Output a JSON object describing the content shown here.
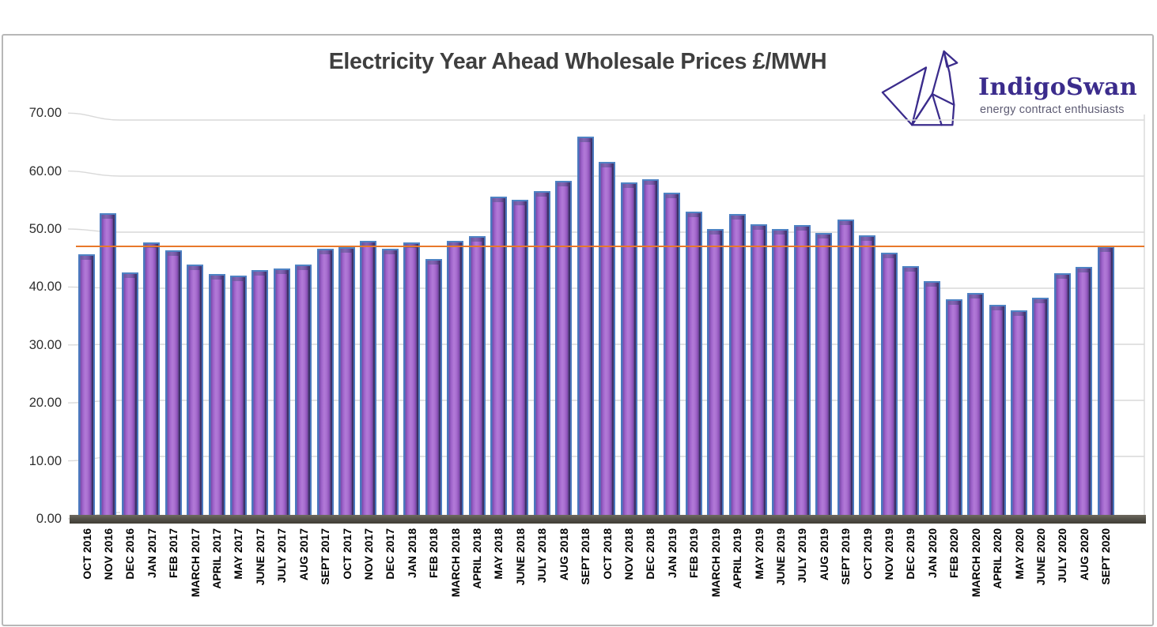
{
  "header": {
    "title": "Electricity Year Ahead Wholesale Prices £/MWH"
  },
  "logo": {
    "name": "IndigoSwan",
    "tagline": "energy contract enthusiasts",
    "brand_color": "#3B2C8C",
    "tagline_color": "#5E5C74"
  },
  "chart_data": {
    "type": "bar",
    "title": "Electricity Year Ahead Wholesale Prices £/MWH",
    "categories": [
      "OCT 2016",
      "NOV 2016",
      "DEC 2016",
      "JAN 2017",
      "FEB 2017",
      "MARCH 2017",
      "APRIL 2017",
      "MAY 2017",
      "JUNE 2017",
      "JULY 2017",
      "AUG 2017",
      "SEPT 2017",
      "OCT 2017",
      "NOV 2017",
      "DEC 2017",
      "JAN 2018",
      "FEB 2018",
      "MARCH 2018",
      "APRIL 2018",
      "MAY 2018",
      "JUNE 2018",
      "JULY 2018",
      "AUG 2018",
      "SEPT 2018",
      "OCT 2018",
      "NOV 2018",
      "DEC 2018",
      "JAN 2019",
      "FEB 2019",
      "MARCH 2019",
      "APRIL 2019",
      "MAY 2019",
      "JUNE 2019",
      "JULY 2019",
      "AUG 2019",
      "SEPT 2019",
      "OCT 2019",
      "NOV 2019",
      "DEC 2019",
      "JAN 2020",
      "FEB 2020",
      "MARCH 2020",
      "APRIL 2020",
      "MAY 2020",
      "JUNE 2020",
      "JULY 2020",
      "AUG 2020",
      "SEPT 2020"
    ],
    "values": [
      46.0,
      53.4,
      42.8,
      48.2,
      46.8,
      44.2,
      42.6,
      42.2,
      43.2,
      43.5,
      44.2,
      47.0,
      47.3,
      48.4,
      47.1,
      48.2,
      45.2,
      48.4,
      49.3,
      56.3,
      55.8,
      57.3,
      59.2,
      67.1,
      62.6,
      58.9,
      59.5,
      57.1,
      53.7,
      50.6,
      53.3,
      51.4,
      50.5,
      51.2,
      49.9,
      52.3,
      49.4,
      46.4,
      44.0,
      41.3,
      38.0,
      39.2,
      37.1,
      36.0,
      38.3,
      42.7,
      43.8,
      47.4
    ],
    "ylim": [
      0,
      70
    ],
    "ytick_interval": 10,
    "ytick_labels": [
      "0.00",
      "10.00",
      "20.00",
      "30.00",
      "40.00",
      "50.00",
      "60.00",
      "70.00"
    ],
    "grid": true,
    "legend": "none",
    "xlabel": "",
    "ylabel": "",
    "reference_line": {
      "value": 47.5,
      "color": "#E8782A"
    },
    "colors": {
      "bar_fill": "#9C5EC6",
      "bar_highlight": "#B27AD7",
      "bar_edge": "#4B79BE",
      "bar_side": "#3D3168",
      "bar_cap": "#6F519E",
      "gridline": "#D9D9D9",
      "floor": "#55524A",
      "axis_label": "#2E2E2E",
      "title": "#3F3F3F",
      "frame_border": "#B7B7B7"
    }
  }
}
